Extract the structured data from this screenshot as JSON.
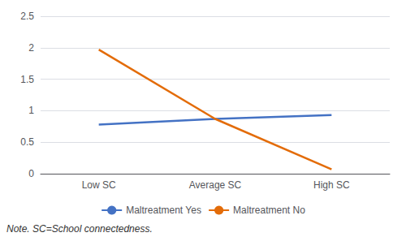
{
  "chart_data": {
    "type": "line",
    "categories": [
      "Low SC",
      "Average SC",
      "High SC"
    ],
    "series": [
      {
        "name": "Maltreatment Yes",
        "color": "#4472C4",
        "values": [
          0.78,
          0.87,
          0.93
        ]
      },
      {
        "name": "Maltreatment No",
        "color": "#E36C09",
        "values": [
          1.97,
          0.87,
          0.07
        ]
      }
    ],
    "ylim": [
      0,
      2.5
    ],
    "yticks": [
      0,
      0.5,
      1,
      1.5,
      2,
      2.5
    ],
    "grid": true,
    "legend": "bottom",
    "annotations": [
      "Note. SC=School connectedness."
    ]
  }
}
